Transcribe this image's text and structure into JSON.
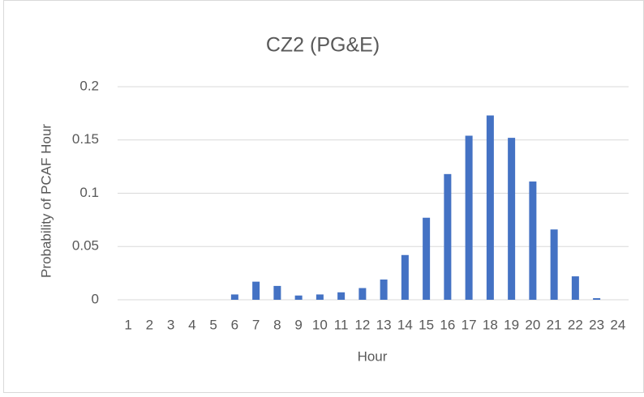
{
  "chart_data": {
    "type": "bar",
    "title": "CZ2 (PG&E)",
    "x_label": "Hour",
    "y_label": "Probability of PCAF Hour",
    "categories": [
      "1",
      "2",
      "3",
      "4",
      "5",
      "6",
      "7",
      "8",
      "9",
      "10",
      "11",
      "12",
      "13",
      "14",
      "15",
      "16",
      "17",
      "18",
      "19",
      "20",
      "21",
      "22",
      "23",
      "24"
    ],
    "values": [
      0,
      0,
      0,
      0,
      0,
      0.005,
      0.017,
      0.013,
      0.004,
      0.005,
      0.007,
      0.011,
      0.019,
      0.042,
      0.077,
      0.118,
      0.154,
      0.173,
      0.152,
      0.111,
      0.066,
      0.022,
      0.0015,
      0
    ],
    "color": "#4472c4",
    "ylim": [
      0,
      0.2
    ],
    "yticks": [
      0,
      0.05,
      0.1,
      0.15,
      0.2
    ],
    "grid": true
  }
}
